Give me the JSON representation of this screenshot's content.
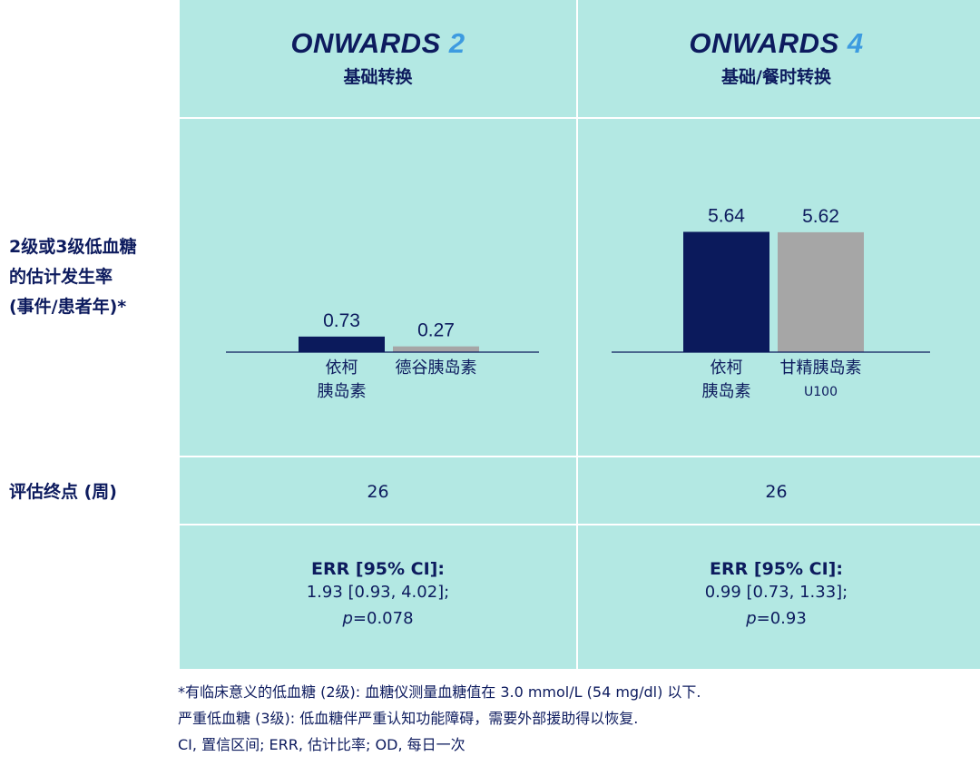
{
  "columns": [
    {
      "trial": "ONWARDS",
      "trial_num": "2",
      "subtitle": "基础转换",
      "endpoint": "26",
      "err_label": "ERR [95% CI]:",
      "err_value": "1.93 [0.93, 4.02];",
      "p_label": "p",
      "p_value": "=0.078"
    },
    {
      "trial": "ONWARDS",
      "trial_num": "4",
      "subtitle": "基础/餐时转换",
      "endpoint": "26",
      "err_label": "ERR [95% CI]:",
      "err_value": "0.99 [0.73, 1.33];",
      "p_label": "p",
      "p_value": "=0.93"
    }
  ],
  "row_labels": {
    "rate": [
      "2级或3级低血糖",
      "的估计发生率",
      "(事件/患者年)*"
    ],
    "endpoint": "评估终点 (周)"
  },
  "chart_data": [
    {
      "type": "bar",
      "title": "ONWARDS 2",
      "categories": [
        "依柯|胰岛素",
        "德谷胰岛素"
      ],
      "values": [
        0.73,
        0.27
      ],
      "labels": [
        "0.73",
        "0.27"
      ],
      "colors": [
        "#0b1a5c",
        "#a6a6a6"
      ],
      "ylim": [
        0,
        7
      ]
    },
    {
      "type": "bar",
      "title": "ONWARDS 4",
      "categories": [
        "依柯|胰岛素",
        "甘精胰岛素|U100"
      ],
      "values": [
        5.64,
        5.62
      ],
      "labels": [
        "5.64",
        "5.62"
      ],
      "colors": [
        "#0b1a5c",
        "#a6a6a6"
      ],
      "ylim": [
        0,
        7
      ]
    }
  ],
  "footnotes": [
    "*有临床意义的低血糖 (2级): 血糖仪测量血糖值在 3.0 mmol/L (54 mg/dl) 以下.",
    "严重低血糖 (3级): 低血糖伴严重认知功能障碍，需要外部援助得以恢复.",
    "CI, 置信区间; ERR, 估计比率; OD, 每日一次"
  ]
}
